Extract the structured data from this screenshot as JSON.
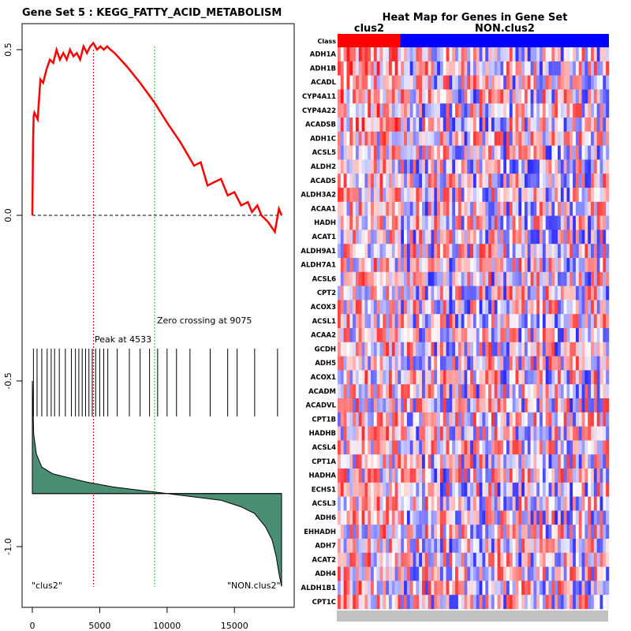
{
  "chart_data": [
    {
      "type": "line",
      "title": "Gene Set  5 : KEGG_FATTY_ACID_METABOLISM",
      "xlabel": "",
      "ylabel": "",
      "xlim": [
        -1000,
        19200
      ],
      "ylim": [
        -1.15,
        0.58
      ],
      "x_ticks": [
        0,
        5000,
        10000,
        15000
      ],
      "x_tick_labels": [
        "0",
        "5000",
        "10000",
        "15000"
      ],
      "y_ticks": [
        0.5,
        0.0,
        -0.5,
        -1.0
      ],
      "y_tick_labels": [
        "0.5",
        "0.0",
        "-0.5",
        "-1.0"
      ],
      "peak_label": "Peak at 4533",
      "peak_position": 4533,
      "zero_crossing_label": "Zero crossing at 9075",
      "zero_crossing_position": 9075,
      "left_class_label": "\"clus2\"",
      "right_class_label": "\"NON.clus2\"",
      "running_es": {
        "x": [
          0,
          50,
          100,
          150,
          400,
          600,
          800,
          1050,
          1300,
          1550,
          1800,
          2050,
          2300,
          2550,
          2800,
          3050,
          3300,
          3550,
          3800,
          4050,
          4300,
          4533,
          4800,
          5050,
          5300,
          5550,
          5800,
          6100,
          7000,
          8000,
          9075,
          10000,
          11000,
          12000,
          12500,
          13000,
          13500,
          14000,
          14500,
          15000,
          15500,
          16000,
          16300,
          16700,
          17000,
          17500,
          18000,
          18300,
          18500
        ],
        "y": [
          0.0,
          0.22,
          0.3,
          0.31,
          0.29,
          0.41,
          0.4,
          0.44,
          0.47,
          0.46,
          0.5,
          0.47,
          0.49,
          0.47,
          0.5,
          0.48,
          0.49,
          0.47,
          0.51,
          0.49,
          0.51,
          0.52,
          0.5,
          0.51,
          0.5,
          0.51,
          0.5,
          0.49,
          0.45,
          0.4,
          0.34,
          0.28,
          0.22,
          0.15,
          0.16,
          0.09,
          0.1,
          0.11,
          0.06,
          0.07,
          0.03,
          0.04,
          0.01,
          0.03,
          0.0,
          -0.02,
          -0.05,
          0.02,
          0.0
        ]
      },
      "hit_positions": [
        80,
        350,
        700,
        1100,
        1400,
        1650,
        2000,
        2450,
        2900,
        3200,
        3450,
        3700,
        3950,
        4200,
        4450,
        4700,
        5000,
        5300,
        5600,
        6300,
        7200,
        8000,
        8700,
        9300,
        10000,
        10700,
        11700,
        13200,
        14500,
        15200,
        16500,
        18200
      ],
      "ranked_metric": {
        "x": [
          0,
          100,
          300,
          700,
          1500,
          2500,
          4000,
          6000,
          8000,
          9075,
          10000,
          12000,
          14000,
          15500,
          16500,
          17300,
          17800,
          18100,
          18300,
          18400,
          18500
        ],
        "y": [
          -0.5,
          -0.66,
          -0.72,
          -0.76,
          -0.78,
          -0.79,
          -0.805,
          -0.82,
          -0.83,
          -0.835,
          -0.84,
          -0.85,
          -0.86,
          -0.88,
          -0.9,
          -0.94,
          -0.98,
          -1.03,
          -1.08,
          -1.1,
          -1.12
        ]
      }
    },
    {
      "type": "heatmap",
      "title": "Heat Map for Genes in Gene Set",
      "class_label": "Class",
      "class_groups": [
        {
          "name": "clus2",
          "fraction": 0.23,
          "color": "#ff0000"
        },
        {
          "name": "NON.clus2",
          "fraction": 0.77,
          "color": "#0000ff"
        }
      ],
      "genes": [
        "ADH1A",
        "ADH1B",
        "ACADL",
        "CYP4A11",
        "CYP4A22",
        "ACADSB",
        "ADH1C",
        "ACSL5",
        "ALDH2",
        "ACADS",
        "ALDH3A2",
        "ACAA1",
        "HADH",
        "ACAT1",
        "ALDH9A1",
        "ALDH7A1",
        "ACSL6",
        "CPT2",
        "ACOX3",
        "ACSL1",
        "ACAA2",
        "GCDH",
        "ADH5",
        "ACOX1",
        "ACADM",
        "ACADVL",
        "CPT1B",
        "HADHB",
        "ACSL4",
        "CPT1A",
        "HADHA",
        "ECHS1",
        "ACSL3",
        "ADH6",
        "EHHADH",
        "ADH7",
        "ACAT2",
        "ADH4",
        "ALDH1B1",
        "CPT1C"
      ],
      "color_low": "#0000ff",
      "color_mid": "#ffffff",
      "color_high": "#ff0000"
    }
  ]
}
